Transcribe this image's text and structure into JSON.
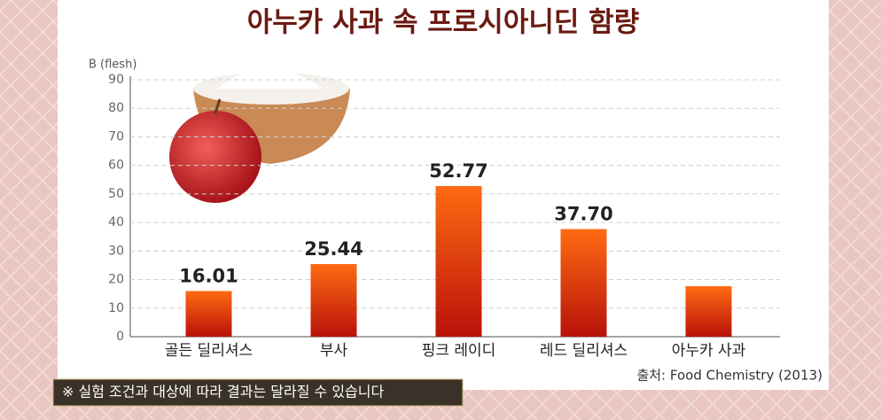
{
  "chart_data": {
    "type": "bar",
    "title": "아누카 사과 속 프로시아니딘 함량",
    "y_label": "B (flesh)",
    "categories": [
      "골든 딜리셔스",
      "부사",
      "핑크 레이디",
      "레드 딜리셔스",
      "아누카 사과"
    ],
    "values": [
      16.01,
      25.44,
      52.77,
      37.7,
      17.7
    ],
    "value_labels": [
      "16.01",
      "25.44",
      "52.77",
      "37.70",
      null
    ],
    "color": "#b8120a",
    "ylim": [
      0,
      90
    ],
    "yticks": [
      0,
      10,
      20,
      30,
      40,
      50,
      60,
      70,
      80,
      90
    ],
    "grid": true,
    "source": "출처: Food Chemistry (2013)",
    "footnote": "※ 실험 조건과 대상에 따라 결과는 달라질 수 있습니다"
  }
}
